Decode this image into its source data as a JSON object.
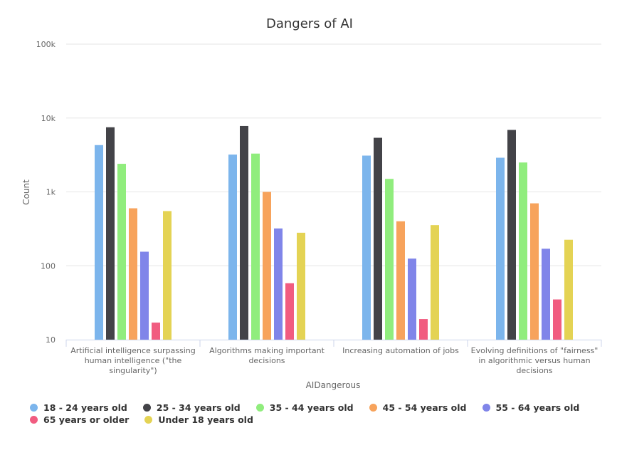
{
  "chart_data": {
    "type": "bar",
    "title": "Dangers of AI",
    "xlabel": "AIDangerous",
    "ylabel": "Count",
    "y_scale": "log",
    "ylim": [
      10,
      100000
    ],
    "y_ticks": [
      10,
      100,
      1000,
      10000,
      100000
    ],
    "y_tick_labels": [
      "10",
      "100",
      "1k",
      "10k",
      "100k"
    ],
    "grid": true,
    "legend_position": "bottom",
    "categories": [
      "Artificial intelligence surpassing human intelligence (\"the singularity\")",
      "Algorithms making important decisions",
      "Increasing automation of jobs",
      "Evolving definitions of \"fairness\" in algorithmic versus human decisions"
    ],
    "category_lines": [
      [
        "Artificial intelligence surpassing",
        "human intelligence (\"the",
        "singularity\")"
      ],
      [
        "Algorithms making important",
        "decisions"
      ],
      [
        "Increasing automation of jobs"
      ],
      [
        "Evolving definitions of \"fairness\"",
        "in algorithmic versus human",
        "decisions"
      ]
    ],
    "series": [
      {
        "name": "18 - 24 years old",
        "color": "#7cb5ec",
        "values": [
          4300,
          3200,
          3100,
          2900
        ]
      },
      {
        "name": "25 - 34 years old",
        "color": "#434348",
        "values": [
          7500,
          7800,
          5400,
          6900
        ]
      },
      {
        "name": "35 - 44 years old",
        "color": "#90ed7d",
        "values": [
          2400,
          3300,
          1500,
          2500
        ]
      },
      {
        "name": "45 - 54 years old",
        "color": "#f7a35c",
        "values": [
          600,
          1000,
          400,
          700
        ]
      },
      {
        "name": "55 - 64 years old",
        "color": "#8085e9",
        "values": [
          155,
          320,
          125,
          170
        ]
      },
      {
        "name": "65 years or older",
        "color": "#f15c80",
        "values": [
          17,
          58,
          19,
          35
        ]
      },
      {
        "name": "Under 18 years old",
        "color": "#e4d354",
        "values": [
          550,
          280,
          355,
          225
        ]
      }
    ]
  }
}
